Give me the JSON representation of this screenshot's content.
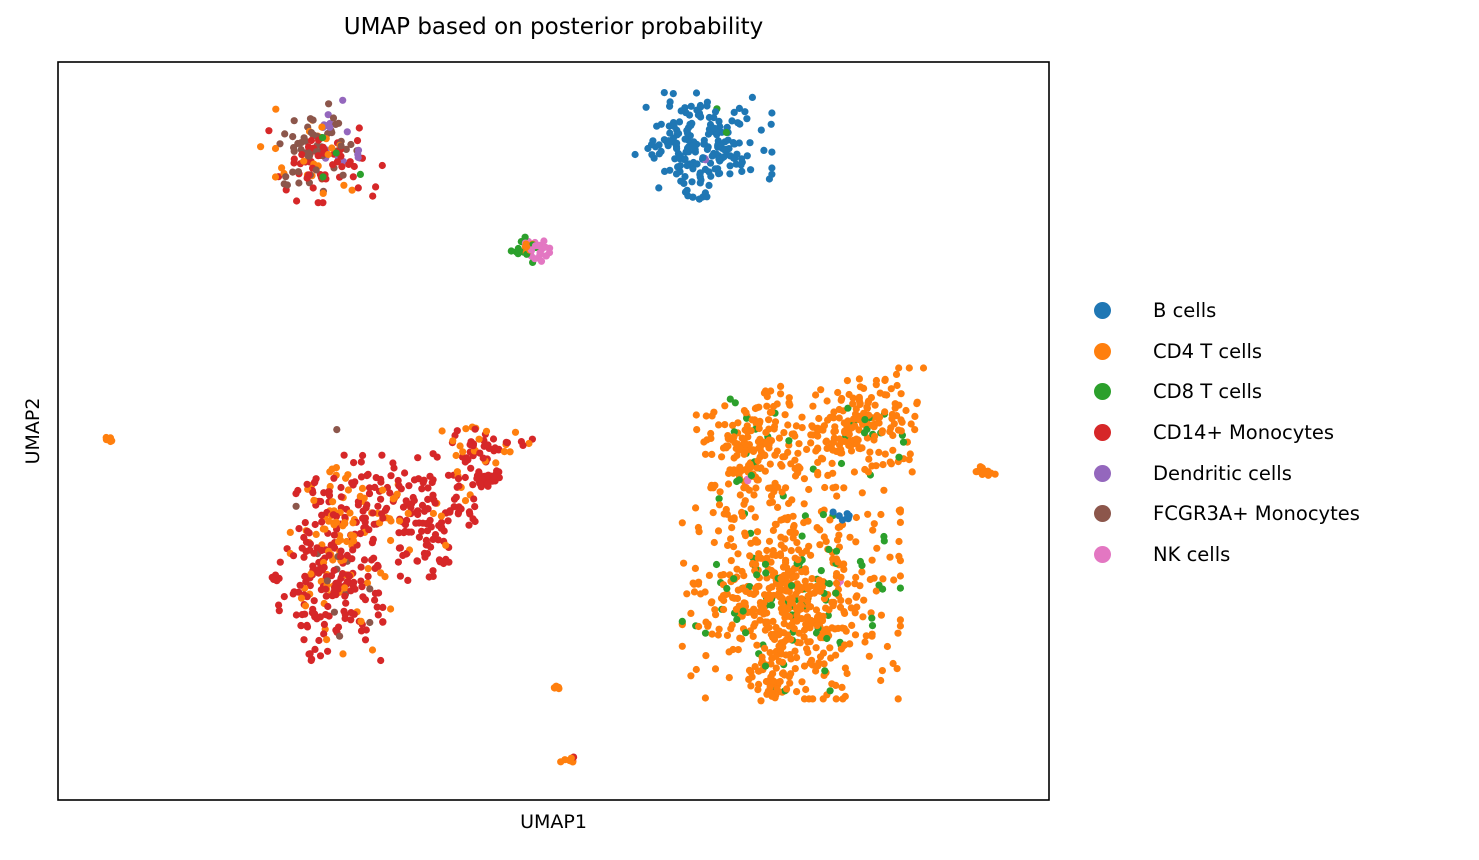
{
  "chart_data": {
    "type": "scatter",
    "title": "UMAP based on posterior probability",
    "xlabel": "UMAP1",
    "ylabel": "UMAP2",
    "xlim": [
      0,
      100
    ],
    "ylim": [
      0,
      100
    ],
    "grid": false,
    "legend_position": "right",
    "ticks": "none",
    "series": [
      {
        "name": "B cells",
        "color": "#1f77b4",
        "clusters": [
          {
            "x": 65,
            "y": 89,
            "sx": 3.2,
            "sy": 3.3,
            "n": 190
          },
          {
            "x": 64.3,
            "y": 81.6,
            "sx": 0.5,
            "sy": 0.35,
            "n": 6
          },
          {
            "x": 79.3,
            "y": 38.6,
            "sx": 0.6,
            "sy": 0.3,
            "n": 8
          }
        ]
      },
      {
        "name": "CD4 T cells",
        "color": "#ff7f0e",
        "clusters": [
          {
            "x": 70.5,
            "y": 47.5,
            "sx": 2.8,
            "sy": 3.6,
            "n": 170
          },
          {
            "x": 78.2,
            "y": 49,
            "sx": 2.4,
            "sy": 3.2,
            "n": 90
          },
          {
            "x": 82.5,
            "y": 51.5,
            "sx": 2.2,
            "sy": 3.2,
            "n": 100
          },
          {
            "x": 74,
            "y": 28,
            "sx": 5,
            "sy": 6.5,
            "n": 520
          },
          {
            "x": 72,
            "y": 16.5,
            "sx": 1.4,
            "sy": 2.2,
            "n": 50
          },
          {
            "x": 93.5,
            "y": 44.5,
            "sx": 0.9,
            "sy": 0.3,
            "n": 14
          },
          {
            "x": 85.2,
            "y": 39.2,
            "sx": 0.2,
            "sy": 0.2,
            "n": 3
          },
          {
            "x": 5.1,
            "y": 48.8,
            "sx": 0.3,
            "sy": 0.25,
            "n": 7
          },
          {
            "x": 50.2,
            "y": 15.3,
            "sx": 0.3,
            "sy": 0.2,
            "n": 6
          },
          {
            "x": 51.5,
            "y": 5,
            "sx": 0.35,
            "sy": 0.3,
            "n": 6
          },
          {
            "x": 28.5,
            "y": 33,
            "sx": 2.3,
            "sy": 6,
            "n": 70
          },
          {
            "x": 34,
            "y": 40,
            "sx": 4,
            "sy": 2.8,
            "n": 40
          },
          {
            "x": 43,
            "y": 48,
            "sx": 3.5,
            "sy": 1.6,
            "n": 20
          },
          {
            "x": 25.5,
            "y": 87,
            "sx": 2.3,
            "sy": 3,
            "n": 22
          },
          {
            "x": 47.5,
            "y": 74.5,
            "sx": 0.6,
            "sy": 0.7,
            "n": 9
          }
        ]
      },
      {
        "name": "CD8 T cells",
        "color": "#2ca02c",
        "clusters": [
          {
            "x": 74,
            "y": 28,
            "sx": 5,
            "sy": 6,
            "n": 80
          },
          {
            "x": 70.5,
            "y": 47.5,
            "sx": 2.6,
            "sy": 3.2,
            "n": 15
          },
          {
            "x": 82.5,
            "y": 49.5,
            "sx": 1.8,
            "sy": 2.5,
            "n": 15
          },
          {
            "x": 47.5,
            "y": 74.5,
            "sx": 0.8,
            "sy": 0.8,
            "n": 14
          },
          {
            "x": 28,
            "y": 87,
            "sx": 1.5,
            "sy": 2.5,
            "n": 5
          },
          {
            "x": 64,
            "y": 90,
            "sx": 2,
            "sy": 2,
            "n": 2
          }
        ]
      },
      {
        "name": "CD14+ Monocytes",
        "color": "#d62728",
        "clusters": [
          {
            "x": 27.5,
            "y": 31,
            "sx": 2.4,
            "sy": 5.5,
            "n": 190
          },
          {
            "x": 33.5,
            "y": 41,
            "sx": 3.8,
            "sy": 2.6,
            "n": 90
          },
          {
            "x": 37,
            "y": 36,
            "sx": 1.8,
            "sy": 3,
            "n": 60
          },
          {
            "x": 41.5,
            "y": 45.5,
            "sx": 1.8,
            "sy": 2.2,
            "n": 30
          },
          {
            "x": 43.5,
            "y": 48,
            "sx": 2,
            "sy": 1,
            "n": 20
          },
          {
            "x": 43.5,
            "y": 43.5,
            "sx": 0.7,
            "sy": 0.6,
            "n": 30
          },
          {
            "x": 41,
            "y": 39,
            "sx": 0.9,
            "sy": 0.8,
            "n": 8
          },
          {
            "x": 27,
            "y": 86,
            "sx": 2.6,
            "sy": 2.3,
            "n": 55
          },
          {
            "x": 51.8,
            "y": 5.5,
            "sx": 0.3,
            "sy": 0.3,
            "n": 4
          },
          {
            "x": 22,
            "y": 30,
            "sx": 0.3,
            "sy": 0.4,
            "n": 5
          }
        ]
      },
      {
        "name": "Dendritic cells",
        "color": "#9467bd",
        "clusters": [
          {
            "x": 27.8,
            "y": 90,
            "sx": 1,
            "sy": 2.4,
            "n": 12
          },
          {
            "x": 30.2,
            "y": 87.5,
            "sx": 0.2,
            "sy": 0.5,
            "n": 4
          },
          {
            "x": 65.5,
            "y": 87,
            "sx": 0.2,
            "sy": 0.2,
            "n": 2
          }
        ]
      },
      {
        "name": "FCGR3A+ Monocytes",
        "color": "#8c564b",
        "clusters": [
          {
            "x": 26.5,
            "y": 89.5,
            "sx": 2,
            "sy": 2.2,
            "n": 45
          },
          {
            "x": 25,
            "y": 84,
            "sx": 1.5,
            "sy": 0.8,
            "n": 10
          },
          {
            "x": 27.5,
            "y": 31,
            "sx": 1.8,
            "sy": 4,
            "n": 12
          },
          {
            "x": 28.5,
            "y": 50,
            "sx": 0.5,
            "sy": 0.3,
            "n": 1
          }
        ]
      },
      {
        "name": "NK cells",
        "color": "#e377c2",
        "clusters": [
          {
            "x": 48.5,
            "y": 74.5,
            "sx": 0.7,
            "sy": 0.8,
            "n": 25
          },
          {
            "x": 69.5,
            "y": 43.5,
            "sx": 0.2,
            "sy": 0.2,
            "n": 2
          },
          {
            "x": 78.5,
            "y": 29.5,
            "sx": 0.2,
            "sy": 0.2,
            "n": 2
          }
        ]
      }
    ]
  }
}
